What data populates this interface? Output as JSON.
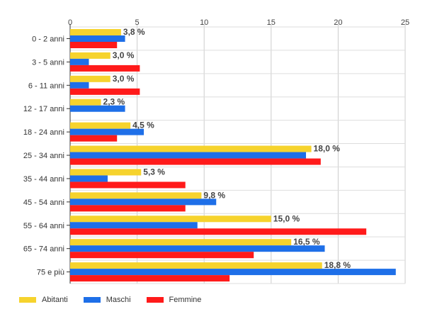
{
  "chart_data": {
    "type": "bar",
    "orientation": "horizontal",
    "title": "",
    "xlabel": "",
    "ylabel": "",
    "xlim": [
      0,
      25
    ],
    "ticks": [
      0,
      5,
      10,
      15,
      20,
      25
    ],
    "grid": true,
    "legend_position": "bottom-left",
    "categories": [
      "0 - 2 anni",
      "3 - 5 anni",
      "6 - 11 anni",
      "12 - 17 anni",
      "18 - 24 anni",
      "25 - 34 anni",
      "35 - 44 anni",
      "45 - 54 anni",
      "55 - 64 anni",
      "65 - 74 anni",
      "75 e più"
    ],
    "series": [
      {
        "name": "Abitanti",
        "color": "#f6d32d",
        "values": [
          3.8,
          3.0,
          3.0,
          2.3,
          4.5,
          18.0,
          5.3,
          9.8,
          15.0,
          16.5,
          18.8
        ],
        "labels": [
          "3,8 %",
          "3,0 %",
          "3,0 %",
          "2,3 %",
          "4,5 %",
          "18,0 %",
          "5,3 %",
          "9,8 %",
          "15,0 %",
          "16,5 %",
          "18,8 %"
        ]
      },
      {
        "name": "Maschi",
        "color": "#1e6fe8",
        "values": [
          4.1,
          1.4,
          1.4,
          4.1,
          5.5,
          17.6,
          2.8,
          10.9,
          9.5,
          19.0,
          24.3
        ]
      },
      {
        "name": "Femmine",
        "color": "#ff1a1a",
        "values": [
          3.5,
          5.2,
          5.2,
          0,
          3.5,
          18.7,
          8.6,
          8.6,
          22.1,
          13.7,
          11.9
        ]
      }
    ]
  }
}
